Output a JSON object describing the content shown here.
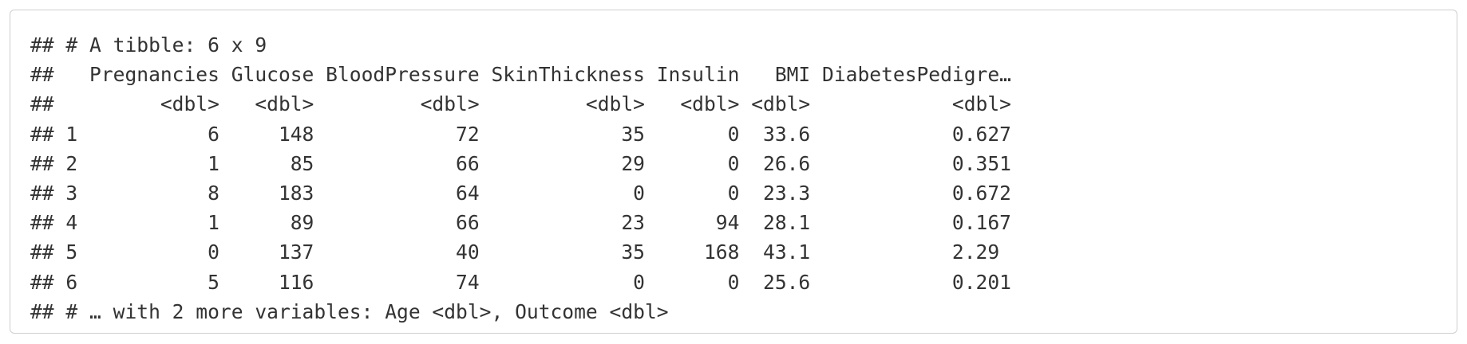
{
  "output": {
    "lines": [
      "## # A tibble: 6 x 9",
      "##   Pregnancies Glucose BloodPressure SkinThickness Insulin   BMI DiabetesPedigre…",
      "##         <dbl>   <dbl>         <dbl>         <dbl>   <dbl> <dbl>            <dbl>",
      "## 1           6     148            72            35       0  33.6            0.627",
      "## 2           1      85            66            29       0  26.6            0.351",
      "## 3           8     183            64             0       0  23.3            0.672",
      "## 4           1      89            66            23      94  28.1            0.167",
      "## 5           0     137            40            35     168  43.1            2.29 ",
      "## 6           5     116            74             0       0  25.6            0.201",
      "## # … with 2 more variables: Age <dbl>, Outcome <dbl>"
    ]
  }
}
